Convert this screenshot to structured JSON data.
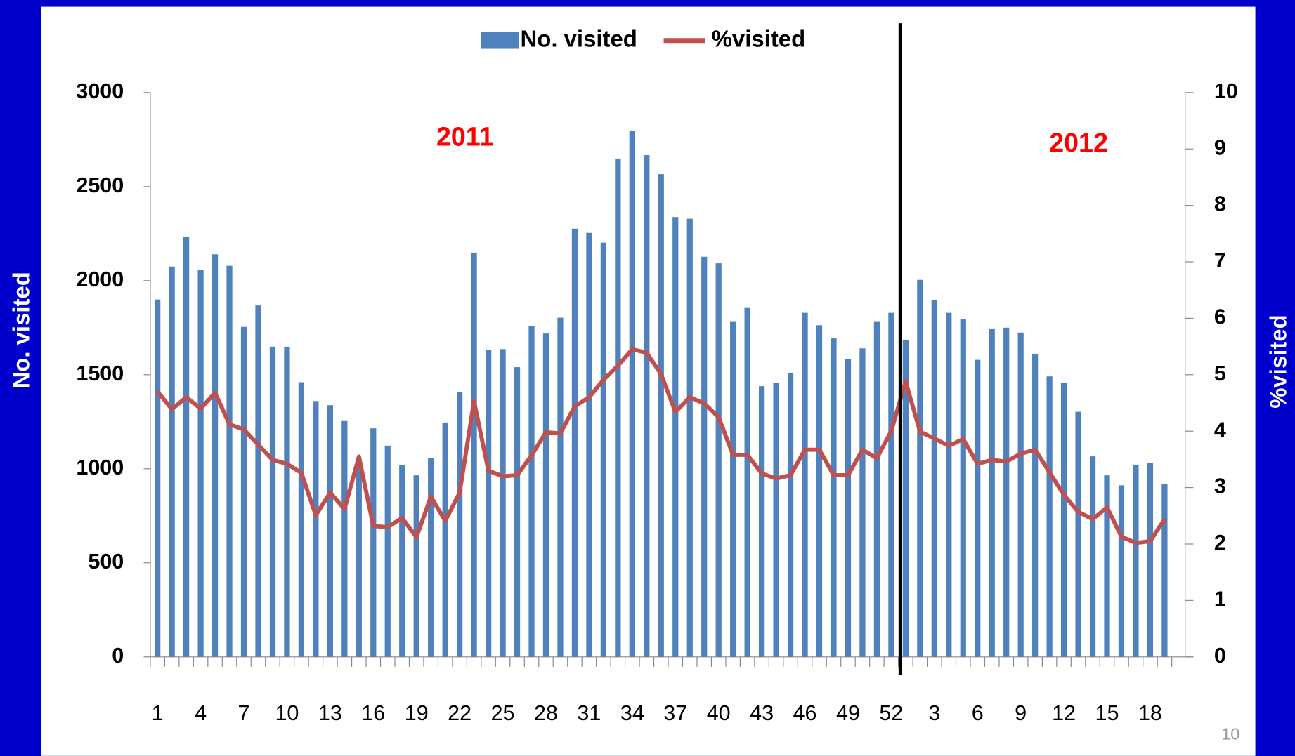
{
  "chart_data": {
    "type": "bar-line",
    "y_label": "No. visited",
    "y2_label": "%visited",
    "annotations": [
      "2011",
      "2012"
    ],
    "page_number": "10",
    "categories": [
      "1",
      null,
      null,
      "4",
      null,
      null,
      "7",
      null,
      null,
      "10",
      null,
      null,
      "13",
      null,
      null,
      "16",
      null,
      null,
      "19",
      null,
      null,
      "22",
      null,
      null,
      "25",
      null,
      null,
      "28",
      null,
      null,
      "31",
      null,
      null,
      "34",
      null,
      null,
      "37",
      null,
      null,
      "40",
      null,
      null,
      "43",
      null,
      null,
      "46",
      null,
      null,
      "49",
      null,
      null,
      "52",
      null,
      null,
      "3",
      null,
      null,
      "6",
      null,
      null,
      "9",
      null,
      null,
      "12",
      null,
      null,
      "15",
      null,
      null,
      "18",
      null
    ],
    "series": [
      {
        "name": "No. visited",
        "color": "#4f81bd",
        "type": "bar",
        "axis": "y",
        "values": [
          1900,
          2075,
          2233,
          2057,
          2140,
          2079,
          1754,
          1868,
          1649,
          1649,
          1460,
          1360,
          1338,
          1254,
          1050,
          1215,
          1123,
          1018,
          965,
          1057,
          1246,
          1408,
          2149,
          1632,
          1636,
          1540,
          1759,
          1719,
          1803,
          2276,
          2254,
          2202,
          2649,
          2798,
          2667,
          2566,
          2338,
          2329,
          2127,
          2092,
          1781,
          1855,
          1439,
          1456,
          1509,
          1829,
          1763,
          1693,
          1583,
          1640,
          1781,
          1829,
          1684,
          2004,
          1895,
          1829,
          1794,
          1579,
          1746,
          1750,
          1724,
          1610,
          1491,
          1456,
          1303,
          1066,
          965,
          912,
          1022,
          1031,
          921
        ]
      },
      {
        "name": "%visited",
        "color": "#c0504d",
        "type": "line",
        "axis": "y2",
        "values": [
          4.7,
          4.39,
          4.6,
          4.4,
          4.68,
          4.12,
          4.03,
          3.76,
          3.49,
          3.42,
          3.26,
          2.51,
          2.91,
          2.62,
          3.55,
          2.32,
          2.3,
          2.46,
          2.12,
          2.84,
          2.41,
          2.91,
          4.53,
          3.3,
          3.2,
          3.22,
          3.57,
          3.98,
          3.96,
          4.44,
          4.6,
          4.91,
          5.16,
          5.45,
          5.39,
          5.01,
          4.34,
          4.6,
          4.49,
          4.25,
          3.58,
          3.58,
          3.25,
          3.16,
          3.22,
          3.67,
          3.67,
          3.22,
          3.22,
          3.67,
          3.52,
          4.0,
          4.88,
          3.99,
          3.87,
          3.74,
          3.86,
          3.42,
          3.49,
          3.46,
          3.6,
          3.67,
          3.27,
          2.87,
          2.57,
          2.44,
          2.65,
          2.13,
          2.02,
          2.05,
          2.44
        ]
      }
    ],
    "ylim": [
      0,
      3000
    ],
    "yticks": [
      0,
      500,
      1000,
      1500,
      2000,
      2500,
      3000
    ],
    "y2lim": [
      0,
      10
    ],
    "y2ticks": [
      0,
      1,
      2,
      3,
      4,
      5,
      6,
      7,
      8,
      9,
      10
    ],
    "legend": "top"
  }
}
